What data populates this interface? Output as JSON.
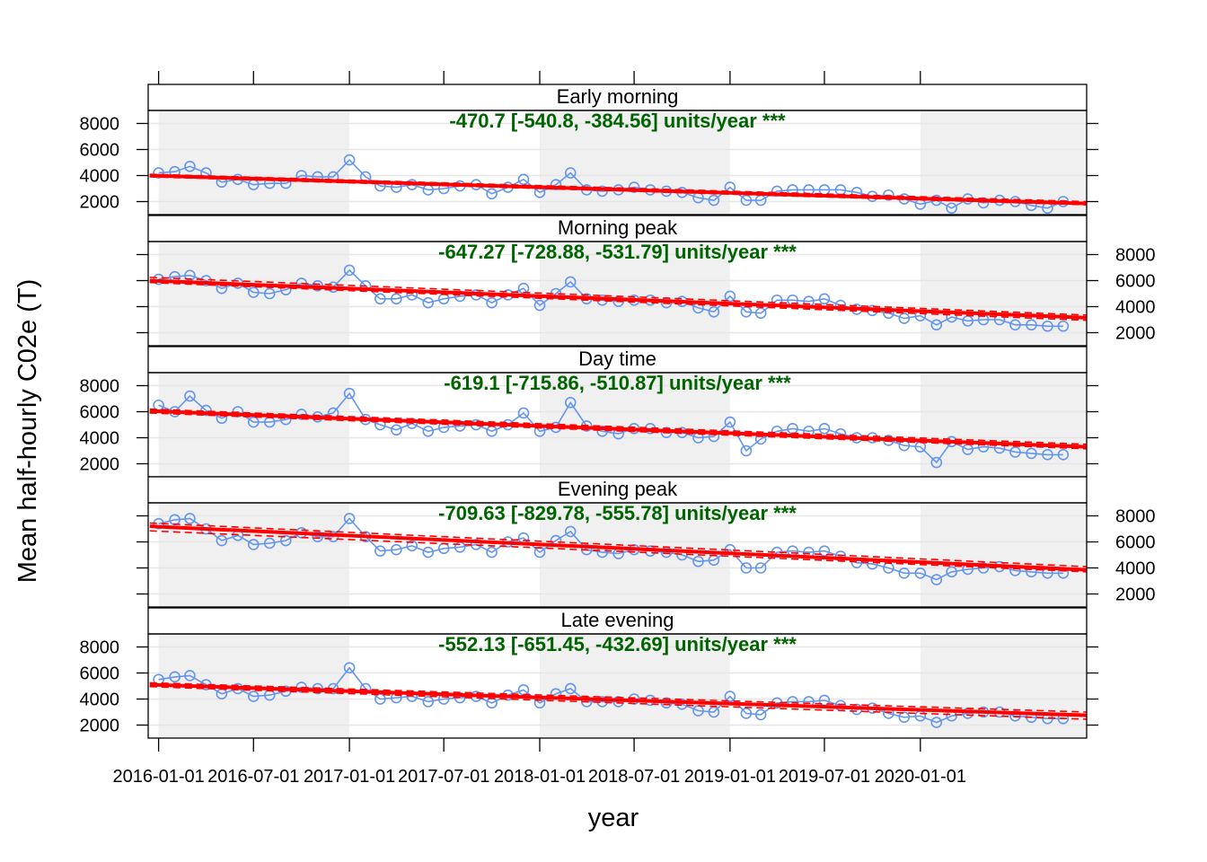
{
  "chart_data": {
    "type": "line",
    "xlabel": "year",
    "ylabel": "Mean half-hourly C02e (T)",
    "x_tick_labels": [
      "2016-01-01",
      "2016-07-01",
      "2017-01-01",
      "2017-07-01",
      "2018-01-01",
      "2018-07-01",
      "2019-01-01",
      "2019-07-01",
      "2020-01-01"
    ],
    "y_ticks": [
      2000,
      4000,
      6000,
      8000
    ],
    "y_range": [
      1000,
      9000
    ],
    "x_range": [
      "2015-12-12",
      "2020-11-15"
    ],
    "shaded_periods": [
      [
        "2016-01-01",
        "2017-01-01"
      ],
      [
        "2018-01-01",
        "2019-01-01"
      ],
      [
        "2020-01-01",
        "2020-11-15"
      ]
    ],
    "colors": {
      "observed": "#6495ED",
      "trend": "#FF0000",
      "annotation": "#006400",
      "shade": "#F0F0F0",
      "grid": "#E6E6E6"
    },
    "months": [
      "2016-01",
      "2016-02",
      "2016-03",
      "2016-04",
      "2016-05",
      "2016-06",
      "2016-07",
      "2016-08",
      "2016-09",
      "2016-10",
      "2016-11",
      "2016-12",
      "2017-01",
      "2017-02",
      "2017-03",
      "2017-04",
      "2017-05",
      "2017-06",
      "2017-07",
      "2017-08",
      "2017-09",
      "2017-10",
      "2017-11",
      "2017-12",
      "2018-01",
      "2018-02",
      "2018-03",
      "2018-04",
      "2018-05",
      "2018-06",
      "2018-07",
      "2018-08",
      "2018-09",
      "2018-10",
      "2018-11",
      "2018-12",
      "2019-01",
      "2019-02",
      "2019-03",
      "2019-04",
      "2019-05",
      "2019-06",
      "2019-07",
      "2019-08",
      "2019-09",
      "2019-10",
      "2019-11",
      "2019-12",
      "2020-01",
      "2020-02",
      "2020-03",
      "2020-04",
      "2020-05",
      "2020-06",
      "2020-07",
      "2020-08",
      "2020-09",
      "2020-10"
    ],
    "panels": [
      {
        "strip": "Early morning",
        "annotation": "-470.7 [-540.8, -384.56] units/year ***",
        "y_axis_side": "left",
        "trend": {
          "start": [
            "2015-12-15",
            4000
          ],
          "end": [
            "2020-11-15",
            1850
          ]
        },
        "ci_upper": {
          "start": [
            "2015-12-15",
            4100
          ],
          "end": [
            "2020-11-15",
            2000
          ]
        },
        "ci_lower": {
          "start": [
            "2015-12-15",
            3900
          ],
          "end": [
            "2020-11-15",
            1750
          ]
        },
        "values": [
          4200,
          4300,
          4700,
          4200,
          3500,
          3700,
          3300,
          3400,
          3400,
          4000,
          3900,
          3900,
          5200,
          3900,
          3200,
          3100,
          3300,
          2900,
          3000,
          3200,
          3300,
          2600,
          3100,
          3700,
          2700,
          3300,
          4200,
          2900,
          2800,
          2900,
          3100,
          2900,
          2800,
          2700,
          2300,
          2100,
          3100,
          2100,
          2100,
          2800,
          2900,
          2900,
          2900,
          2900,
          2700,
          2400,
          2500,
          2200,
          1800,
          2100,
          1500,
          2200,
          1900,
          2100,
          2000,
          1700,
          1500,
          2000
        ]
      },
      {
        "strip": "Morning peak",
        "annotation": "-647.27 [-728.88, -531.79] units/year ***",
        "y_axis_side": "right",
        "trend": {
          "start": [
            "2015-12-15",
            6000
          ],
          "end": [
            "2020-11-15",
            3150
          ]
        },
        "ci_upper": {
          "start": [
            "2015-12-15",
            6250
          ],
          "end": [
            "2020-11-15",
            3350
          ]
        },
        "ci_lower": {
          "start": [
            "2015-12-15",
            5850
          ],
          "end": [
            "2020-11-15",
            2950
          ]
        },
        "values": [
          6100,
          6300,
          6400,
          6000,
          5400,
          5800,
          5100,
          5000,
          5300,
          5800,
          5600,
          5500,
          6800,
          5600,
          4600,
          4600,
          4900,
          4300,
          4600,
          4800,
          4900,
          4300,
          4900,
          5400,
          4100,
          5000,
          5900,
          4600,
          4500,
          4400,
          4500,
          4500,
          4300,
          4400,
          3900,
          3600,
          4800,
          3600,
          3500,
          4500,
          4500,
          4400,
          4600,
          4100,
          3800,
          3700,
          3500,
          3100,
          3300,
          2600,
          3200,
          2900,
          3000,
          3000,
          2600,
          2600,
          2500,
          2500
        ]
      },
      {
        "strip": "Day time",
        "annotation": "-619.1 [-715.86, -510.87] units/year ***",
        "y_axis_side": "left",
        "trend": {
          "start": [
            "2015-12-15",
            6050
          ],
          "end": [
            "2020-11-15",
            3300
          ]
        },
        "ci_upper": {
          "start": [
            "2015-12-15",
            6200
          ],
          "end": [
            "2020-11-15",
            3500
          ]
        },
        "ci_lower": {
          "start": [
            "2015-12-15",
            5900
          ],
          "end": [
            "2020-11-15",
            3150
          ]
        },
        "values": [
          6500,
          6000,
          7200,
          6100,
          5500,
          6000,
          5200,
          5200,
          5400,
          5800,
          5600,
          5900,
          7400,
          5400,
          5000,
          4600,
          5100,
          4500,
          4800,
          4900,
          5000,
          4500,
          5000,
          5900,
          4500,
          4800,
          6700,
          4900,
          4500,
          4300,
          4700,
          4700,
          4400,
          4400,
          4000,
          4100,
          5200,
          3000,
          3900,
          4500,
          4700,
          4500,
          4700,
          4300,
          4000,
          4000,
          3800,
          3400,
          3300,
          2100,
          3700,
          3100,
          3300,
          3200,
          2900,
          2800,
          2700,
          2700
        ]
      },
      {
        "strip": "Evening peak",
        "annotation": "-709.63 [-829.78, -555.78] units/year ***",
        "y_axis_side": "right",
        "trend": {
          "start": [
            "2015-12-15",
            7200
          ],
          "end": [
            "2020-11-15",
            3850
          ]
        },
        "ci_upper": {
          "start": [
            "2015-12-15",
            7450
          ],
          "end": [
            "2020-11-15",
            4100
          ]
        },
        "ci_lower": {
          "start": [
            "2015-12-15",
            6850
          ],
          "end": [
            "2020-11-15",
            3700
          ]
        },
        "values": [
          7400,
          7700,
          7800,
          7000,
          6100,
          6500,
          5800,
          5900,
          6100,
          6700,
          6400,
          6400,
          7800,
          6400,
          5300,
          5400,
          5700,
          5200,
          5500,
          5600,
          5800,
          5200,
          6000,
          6300,
          5200,
          6100,
          6800,
          5400,
          5200,
          5100,
          5400,
          5300,
          5200,
          5000,
          4500,
          4600,
          5400,
          4000,
          4000,
          5200,
          5300,
          5200,
          5300,
          4900,
          4400,
          4300,
          4000,
          3600,
          3600,
          3100,
          3700,
          3900,
          4000,
          4100,
          3800,
          3700,
          3600,
          3600
        ]
      },
      {
        "strip": "Late evening",
        "annotation": "-552.13 [-651.45, -432.69] units/year ***",
        "y_axis_side": "left",
        "trend": {
          "start": [
            "2015-12-15",
            5100
          ],
          "end": [
            "2020-11-15",
            2750
          ]
        },
        "ci_upper": {
          "start": [
            "2015-12-15",
            5250
          ],
          "end": [
            "2020-11-15",
            3000
          ]
        },
        "ci_lower": {
          "start": [
            "2015-12-15",
            4950
          ],
          "end": [
            "2020-11-15",
            2450
          ]
        },
        "values": [
          5500,
          5700,
          5800,
          5100,
          4400,
          4800,
          4200,
          4300,
          4600,
          4900,
          4800,
          4800,
          6400,
          4800,
          4000,
          4100,
          4200,
          3800,
          4000,
          4100,
          4200,
          3700,
          4300,
          4700,
          3700,
          4400,
          4800,
          3800,
          3800,
          3800,
          4000,
          3900,
          3700,
          3600,
          3100,
          3000,
          4200,
          2900,
          2800,
          3700,
          3800,
          3800,
          3900,
          3500,
          3200,
          3300,
          2900,
          2600,
          2700,
          2200,
          2700,
          2900,
          3000,
          3000,
          2700,
          2600,
          2500,
          2500
        ]
      }
    ]
  }
}
